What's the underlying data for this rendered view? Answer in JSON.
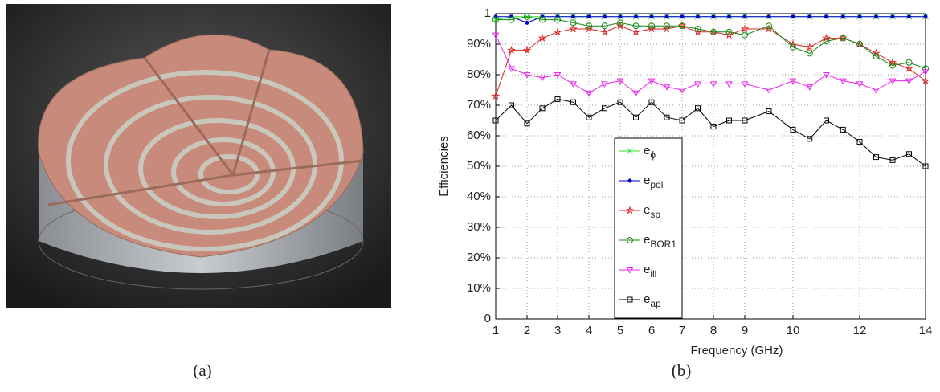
{
  "caption_a": "(a)",
  "caption_b": "(b)",
  "chart_data": {
    "type": "line",
    "xlabel": "Frequency (GHz)",
    "ylabel": "Efficiencies",
    "x": [
      1,
      1.5,
      2,
      2.5,
      3,
      3.5,
      4,
      4.5,
      5,
      5.5,
      6,
      6.5,
      7,
      7.5,
      8,
      8.5,
      9,
      9.5,
      10,
      10.5,
      11,
      11.5,
      12,
      12.5,
      13,
      13.5,
      14
    ],
    "xlim": [
      1,
      14
    ],
    "xticks": [
      1,
      2,
      3,
      4,
      5,
      6,
      7,
      8,
      9,
      10,
      12,
      14
    ],
    "ylim": [
      0,
      1
    ],
    "yticks": [
      0,
      {
        "value": 0.1,
        "label": "10%"
      },
      {
        "value": 0.2,
        "label": "20%"
      },
      {
        "value": 0.3,
        "label": "30%"
      },
      {
        "value": 0.4,
        "label": "40%"
      },
      {
        "value": 0.5,
        "label": "50%"
      },
      {
        "value": 0.6,
        "label": "60%"
      },
      {
        "value": 0.7,
        "label": "70%"
      },
      {
        "value": 0.8,
        "label": "80%"
      },
      {
        "value": 0.9,
        "label": "90%"
      },
      1
    ],
    "grid": true,
    "series": [
      {
        "name": "eϕ",
        "color": "#33dd33",
        "marker": "x",
        "values": [
          0.98,
          0.99,
          0.99,
          0.99,
          0.99,
          0.99,
          0.99,
          0.99,
          0.99,
          0.99,
          0.99,
          0.99,
          0.99,
          0.99,
          0.99,
          0.99,
          0.99,
          0.99,
          0.99,
          0.99,
          0.99,
          0.99,
          0.99,
          0.99,
          0.99,
          0.99,
          0.99
        ]
      },
      {
        "name": "epol",
        "color": "#0000cc",
        "marker": "dot",
        "values": [
          0.99,
          0.99,
          0.97,
          0.99,
          0.99,
          0.99,
          0.99,
          0.99,
          0.99,
          0.99,
          0.99,
          0.99,
          0.99,
          0.99,
          0.99,
          0.99,
          0.99,
          0.99,
          0.99,
          0.99,
          0.99,
          0.99,
          0.99,
          0.99,
          0.99,
          0.99,
          0.99
        ]
      },
      {
        "name": "esp",
        "color": "#dd2222",
        "marker": "star",
        "values": [
          0.73,
          0.88,
          0.88,
          0.92,
          0.94,
          0.95,
          0.95,
          0.94,
          0.96,
          0.94,
          0.95,
          0.95,
          0.96,
          0.94,
          0.94,
          0.93,
          0.95,
          0.95,
          0.9,
          0.89,
          0.92,
          0.92,
          0.9,
          0.87,
          0.84,
          0.82,
          0.78
        ]
      },
      {
        "name": "eBOR1",
        "color": "#118811",
        "marker": "circle",
        "values": [
          0.98,
          0.98,
          0.99,
          0.98,
          0.98,
          0.97,
          0.96,
          0.96,
          0.97,
          0.96,
          0.96,
          0.96,
          0.96,
          0.95,
          0.94,
          0.94,
          0.93,
          0.96,
          0.89,
          0.87,
          0.91,
          0.92,
          0.9,
          0.86,
          0.83,
          0.84,
          0.82
        ]
      },
      {
        "name": "eill",
        "color": "#ee22ee",
        "marker": "tri",
        "values": [
          0.93,
          0.82,
          0.8,
          0.79,
          0.8,
          0.77,
          0.74,
          0.77,
          0.78,
          0.74,
          0.78,
          0.76,
          0.75,
          0.77,
          0.77,
          0.77,
          0.77,
          0.75,
          0.78,
          0.76,
          0.8,
          0.78,
          0.77,
          0.75,
          0.78,
          0.78,
          0.81
        ]
      },
      {
        "name": "eap",
        "color": "#000000",
        "marker": "square",
        "values": [
          0.65,
          0.7,
          0.64,
          0.69,
          0.72,
          0.71,
          0.66,
          0.69,
          0.71,
          0.66,
          0.71,
          0.66,
          0.65,
          0.69,
          0.63,
          0.65,
          0.65,
          0.68,
          0.62,
          0.59,
          0.65,
          0.62,
          0.58,
          0.53,
          0.52,
          0.54,
          0.5
        ]
      }
    ]
  }
}
